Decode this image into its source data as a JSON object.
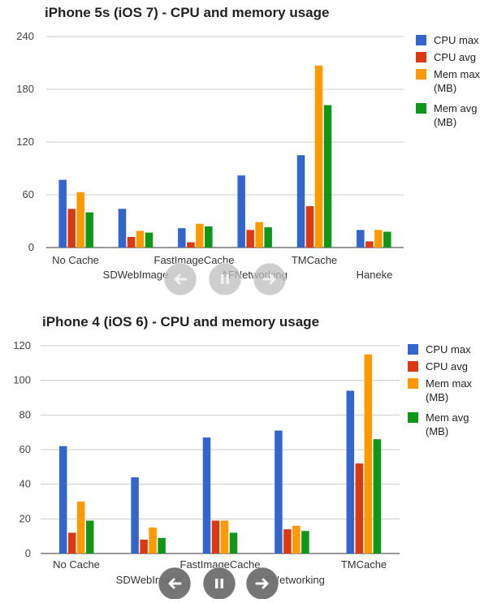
{
  "chart_data": [
    {
      "type": "bar",
      "title": "iPhone 5s (iOS 7) - CPU and memory usage",
      "ylim": [
        0,
        240
      ],
      "yticks": [
        0,
        60,
        120,
        180,
        240
      ],
      "categories": [
        "No Cache",
        "SDWebImage",
        "FastImageCache",
        "AFNetworking",
        "TMCache",
        "Haneke"
      ],
      "series": [
        {
          "name": "CPU max",
          "color": "#3366cc",
          "values": [
            77,
            44,
            22,
            82,
            105,
            20
          ]
        },
        {
          "name": "CPU avg",
          "color": "#dc3912",
          "values": [
            44,
            12,
            6,
            20,
            47,
            7
          ]
        },
        {
          "name": "Mem max (MB)",
          "color": "#ff9900",
          "values": [
            63,
            19,
            27,
            29,
            207,
            20
          ]
        },
        {
          "name": "Mem avg (MB)",
          "color": "#109618",
          "values": [
            40,
            17,
            24,
            23,
            162,
            18
          ]
        }
      ],
      "legend_position": "right",
      "legend_lines": [
        [
          "CPU max"
        ],
        [
          "CPU avg"
        ],
        [
          "Mem max",
          "(MB)"
        ],
        [
          "Mem avg",
          "(MB)"
        ]
      ]
    },
    {
      "type": "bar",
      "title": "iPhone 4 (iOS 6) - CPU and memory usage",
      "ylim": [
        0,
        120
      ],
      "yticks": [
        0,
        20,
        40,
        60,
        80,
        100,
        120
      ],
      "categories": [
        "No Cache",
        "SDWebImage",
        "FastImageCache",
        "AFNetworking",
        "TMCache"
      ],
      "series": [
        {
          "name": "CPU max",
          "color": "#3366cc",
          "values": [
            62,
            44,
            67,
            71,
            94
          ]
        },
        {
          "name": "CPU avg",
          "color": "#dc3912",
          "values": [
            12,
            8,
            19,
            14,
            52
          ]
        },
        {
          "name": "Mem max (MB)",
          "color": "#ff9900",
          "values": [
            30,
            15,
            19,
            16,
            115
          ]
        },
        {
          "name": "Mem avg (MB)",
          "color": "#109618",
          "values": [
            19,
            9,
            12,
            13,
            66
          ]
        }
      ],
      "legend_position": "right",
      "legend_lines": [
        [
          "CPU max"
        ],
        [
          "CPU avg"
        ],
        [
          "Mem max",
          "(MB)"
        ],
        [
          "Mem avg",
          "(MB)"
        ]
      ]
    }
  ],
  "controls": {
    "prev_icon": "arrow-left-icon",
    "pause_icon": "pause-icon",
    "next_icon": "arrow-right-icon"
  }
}
